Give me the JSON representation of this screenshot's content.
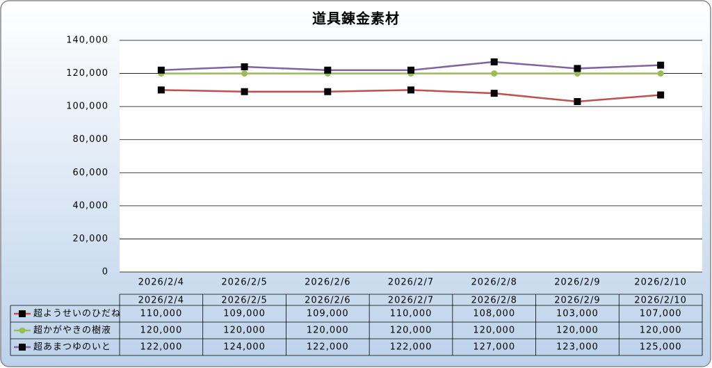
{
  "chart_data": {
    "type": "line",
    "title": "道具錬金素材",
    "categories": [
      "2026/2/4",
      "2026/2/5",
      "2026/2/6",
      "2026/2/7",
      "2026/2/8",
      "2026/2/9",
      "2026/2/10"
    ],
    "series": [
      {
        "name": "超ようせいのひだね",
        "color": "#c0504d",
        "marker": "square",
        "marker_color": "#000000",
        "values": [
          110000,
          109000,
          109000,
          110000,
          108000,
          103000,
          107000
        ],
        "value_labels": [
          "110,000",
          "109,000",
          "109,000",
          "110,000",
          "108,000",
          "103,000",
          "107,000"
        ]
      },
      {
        "name": "超かがやきの樹液",
        "color": "#9bbb59",
        "marker": "circle",
        "marker_color": "#9bbb59",
        "values": [
          120000,
          120000,
          120000,
          120000,
          120000,
          120000,
          120000
        ],
        "value_labels": [
          "120,000",
          "120,000",
          "120,000",
          "120,000",
          "120,000",
          "120,000",
          "120,000"
        ]
      },
      {
        "name": "超あまつゆのいと",
        "color": "#8064a2",
        "marker": "square",
        "marker_color": "#000000",
        "values": [
          122000,
          124000,
          122000,
          122000,
          127000,
          123000,
          125000
        ],
        "value_labels": [
          "122,000",
          "124,000",
          "122,000",
          "122,000",
          "127,000",
          "123,000",
          "125,000"
        ]
      }
    ],
    "ylim": [
      0,
      140000
    ],
    "yticks": [
      0,
      {
        "value": 20000,
        "label": "20,000"
      },
      {
        "value": 40000,
        "label": "40,000"
      },
      {
        "value": 60000,
        "label": "60,000"
      },
      {
        "value": 80000,
        "label": "80,000"
      },
      {
        "value": 100000,
        "label": "100,000"
      },
      {
        "value": 120000,
        "label": "120,000"
      },
      {
        "value": 140000,
        "label": "140,000"
      }
    ],
    "grid": true,
    "data_table": true
  }
}
